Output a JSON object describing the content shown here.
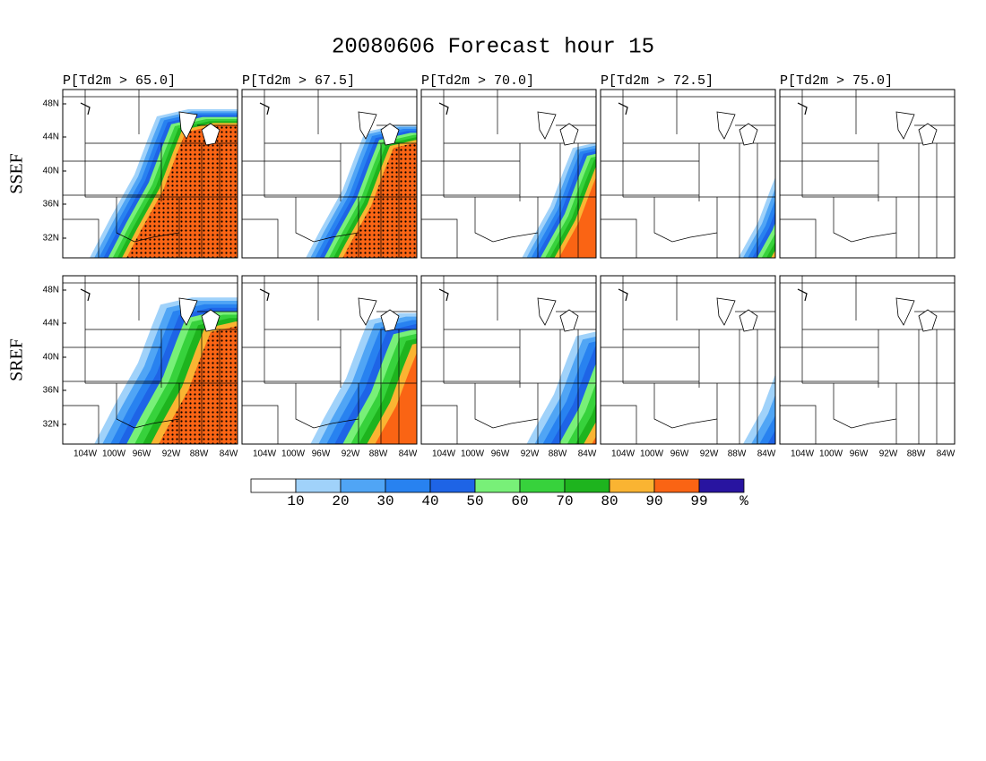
{
  "title": "20080606 Forecast hour 15",
  "panels": [
    "P[Td2m > 65.0]",
    "P[Td2m > 67.5]",
    "P[Td2m > 70.0]",
    "P[Td2m > 72.5]",
    "P[Td2m > 75.0]"
  ],
  "rows": [
    "SSEF",
    "SREF"
  ],
  "lat_labels": [
    "48N",
    "44N",
    "40N",
    "36N",
    "32N"
  ],
  "lon_labels": [
    "104W",
    "100W",
    "96W",
    "92W",
    "88W",
    "84W"
  ],
  "colorbar": {
    "colors": [
      "#ffffff",
      "#a0d2fa",
      "#50a5f5",
      "#2882f0",
      "#1e64e6",
      "#78f078",
      "#37d23c",
      "#1eb41e",
      "#fab432",
      "#fa6414",
      "#2814a0"
    ],
    "labels": [
      "10",
      "20",
      "30",
      "40",
      "50",
      "60",
      "70",
      "80",
      "90",
      "99",
      "%"
    ]
  }
}
